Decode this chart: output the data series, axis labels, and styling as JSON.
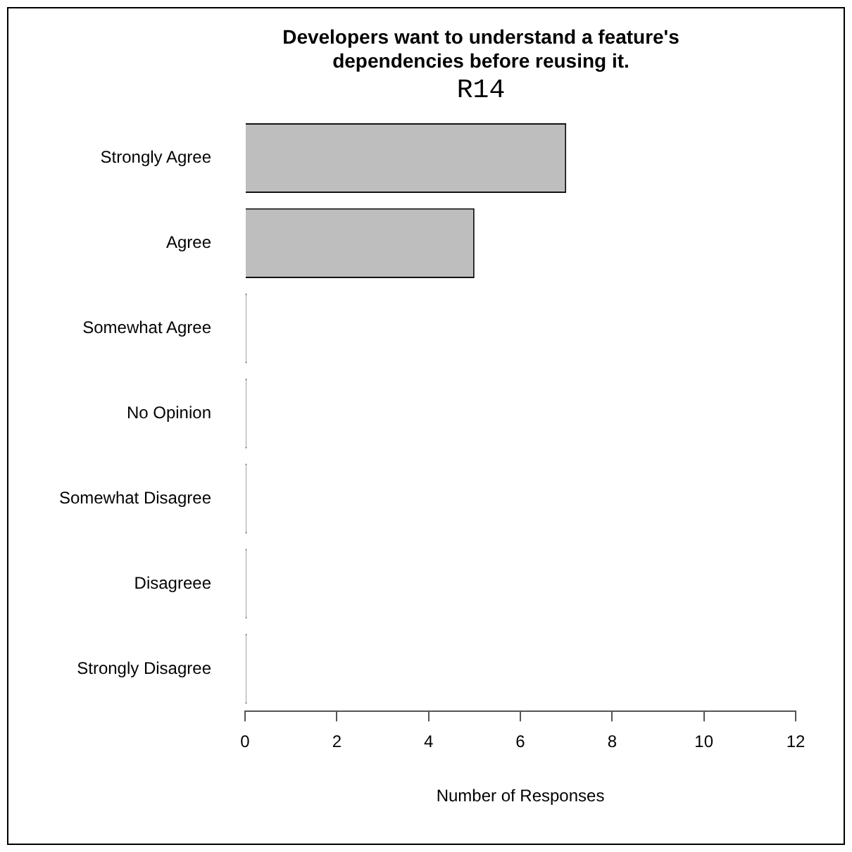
{
  "chart_data": {
    "type": "bar",
    "orientation": "horizontal",
    "title": "Developers want to understand a feature's\ndependencies before reusing it.",
    "subtitle": "R14",
    "xlabel": "Number of Responses",
    "categories": [
      "Strongly Agree",
      "Agree",
      "Somewhat Agree",
      "No Opinion",
      "Somewhat Disagree",
      "Disagreee",
      "Strongly Disagree"
    ],
    "values": [
      7,
      5,
      0,
      0,
      0,
      0,
      0
    ],
    "color": "#bebebe",
    "xlim": [
      0,
      12
    ],
    "xticks": [
      0,
      2,
      4,
      6,
      8,
      10,
      12
    ],
    "grid": false,
    "legend": false
  }
}
